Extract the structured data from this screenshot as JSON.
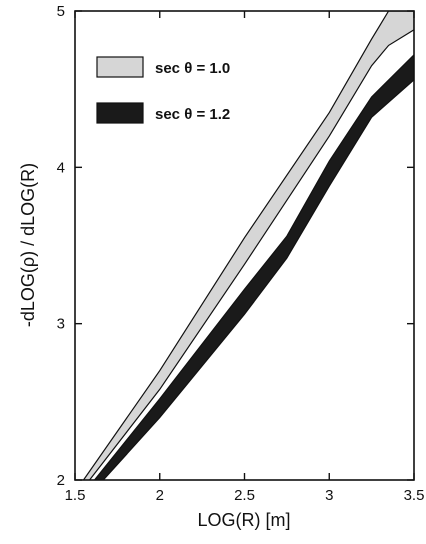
{
  "chart_data": {
    "type": "area",
    "xlabel": "LOG(R) [m]",
    "ylabel": "-dLOG(ρ) / dLOG(R)",
    "xlim": [
      1.5,
      3.5
    ],
    "ylim": [
      2,
      5
    ],
    "x_ticks": [
      1.5,
      2,
      2.5,
      3,
      3.5
    ],
    "x_tick_labels": [
      "1.5",
      "2",
      "2.5",
      "3",
      "3.5"
    ],
    "y_ticks": [
      2,
      3,
      4,
      5
    ],
    "y_tick_labels": [
      "2",
      "3",
      "4",
      "5"
    ],
    "grid": false,
    "legend_position": "top-left",
    "series": [
      {
        "name": "sec θ = 1.0",
        "fill": "#d6d6d6",
        "x": [
          1.55,
          2.0,
          2.5,
          3.0,
          3.25,
          3.35,
          3.5
        ],
        "upper": [
          2.0,
          2.7,
          3.55,
          4.35,
          4.82,
          5.0,
          5.0
        ],
        "lower": [
          1.95,
          2.58,
          3.38,
          4.2,
          4.65,
          4.78,
          4.88
        ]
      },
      {
        "name": "sec θ = 1.2",
        "fill": "#1a1a1a",
        "x": [
          1.6,
          2.0,
          2.5,
          2.75,
          3.0,
          3.25,
          3.5
        ],
        "upper": [
          1.98,
          2.52,
          3.22,
          3.56,
          4.04,
          4.45,
          4.72
        ],
        "lower": [
          1.92,
          2.4,
          3.06,
          3.42,
          3.88,
          4.32,
          4.56
        ]
      }
    ]
  }
}
